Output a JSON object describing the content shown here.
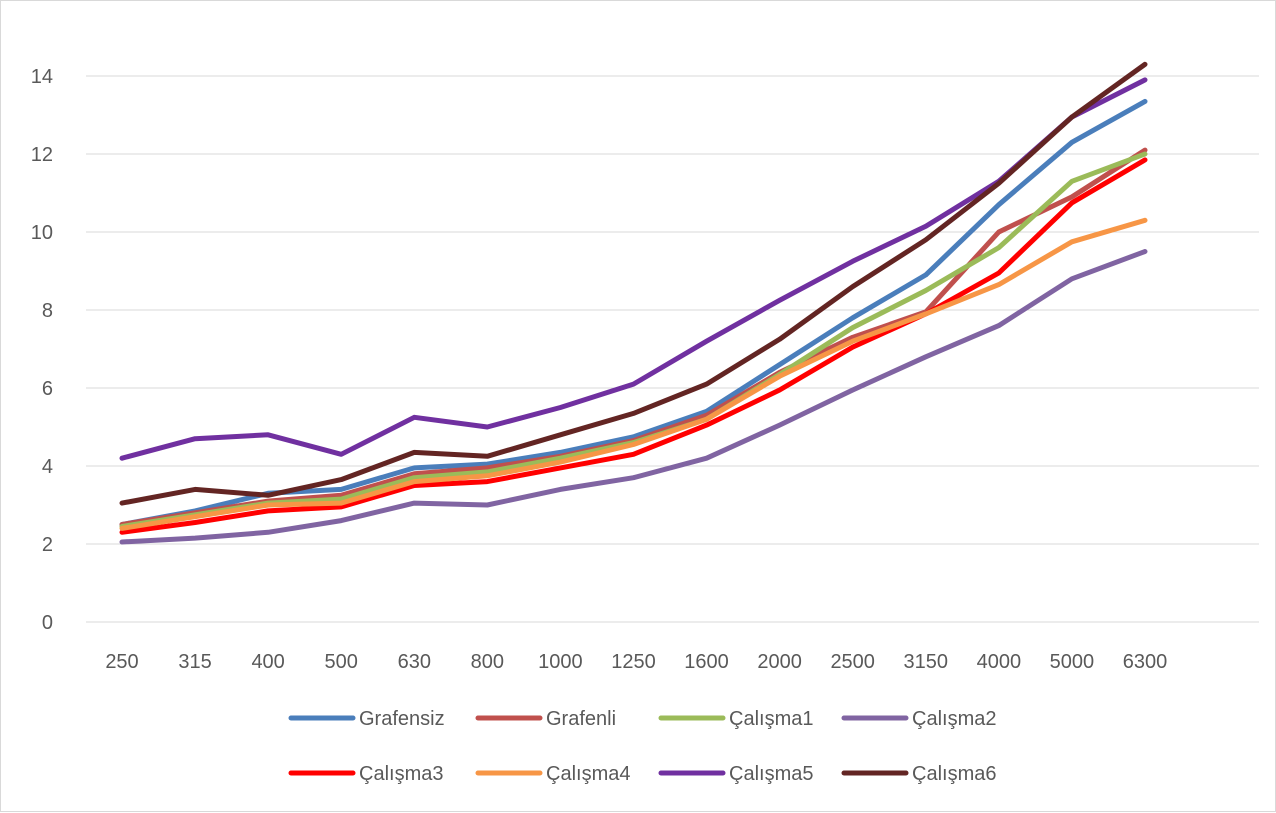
{
  "chart_data": {
    "type": "line",
    "title": "",
    "xlabel": "",
    "ylabel": "",
    "categories": [
      "250",
      "315",
      "400",
      "500",
      "630",
      "800",
      "1000",
      "1250",
      "1600",
      "2000",
      "2500",
      "3150",
      "4000",
      "5000",
      "6300"
    ],
    "ylim": [
      0,
      14
    ],
    "yticks": [
      0,
      2,
      4,
      6,
      8,
      10,
      12,
      14
    ],
    "grid": true,
    "legend_position": "bottom",
    "series": [
      {
        "name": "Grafensiz",
        "color": "#4a7ebb",
        "values": [
          2.5,
          2.85,
          3.3,
          3.4,
          3.95,
          4.05,
          4.35,
          4.75,
          5.4,
          6.6,
          7.8,
          8.9,
          10.7,
          12.3,
          13.35
        ]
      },
      {
        "name": "Grafenli",
        "color": "#c0504d",
        "values": [
          2.5,
          2.8,
          3.1,
          3.25,
          3.8,
          3.95,
          4.25,
          4.65,
          5.3,
          6.4,
          7.3,
          7.95,
          10.0,
          10.9,
          12.1
        ]
      },
      {
        "name": "Çalışma1",
        "color": "#9bbb59",
        "values": [
          2.45,
          2.75,
          3.05,
          3.15,
          3.7,
          3.85,
          4.2,
          4.6,
          5.2,
          6.35,
          7.55,
          8.5,
          9.6,
          11.3,
          12.0
        ]
      },
      {
        "name": "Çalışma2",
        "color": "#8064a2",
        "values": [
          2.05,
          2.15,
          2.3,
          2.6,
          3.05,
          3.0,
          3.4,
          3.7,
          4.2,
          5.05,
          5.95,
          6.8,
          7.6,
          8.8,
          9.5
        ]
      },
      {
        "name": "Çalışma3",
        "color": "#ff0000",
        "values": [
          2.3,
          2.55,
          2.85,
          2.95,
          3.5,
          3.6,
          3.95,
          4.3,
          5.05,
          5.95,
          7.05,
          7.9,
          8.95,
          10.75,
          11.85
        ]
      },
      {
        "name": "Çalışma4",
        "color": "#f79646",
        "values": [
          2.4,
          2.7,
          3.0,
          3.05,
          3.6,
          3.75,
          4.1,
          4.55,
          5.2,
          6.3,
          7.2,
          7.9,
          8.65,
          9.75,
          10.3
        ]
      },
      {
        "name": "Çalışma5",
        "color": "#7030a0",
        "values": [
          4.2,
          4.7,
          4.8,
          4.3,
          5.25,
          5.0,
          5.5,
          6.1,
          7.2,
          8.25,
          9.25,
          10.15,
          11.3,
          12.95,
          13.9
        ]
      },
      {
        "name": "Çalışma6",
        "color": "#632523",
        "values": [
          3.05,
          3.4,
          3.25,
          3.65,
          4.35,
          4.25,
          4.8,
          5.35,
          6.1,
          7.25,
          8.6,
          9.8,
          11.25,
          12.95,
          14.3
        ]
      }
    ]
  }
}
